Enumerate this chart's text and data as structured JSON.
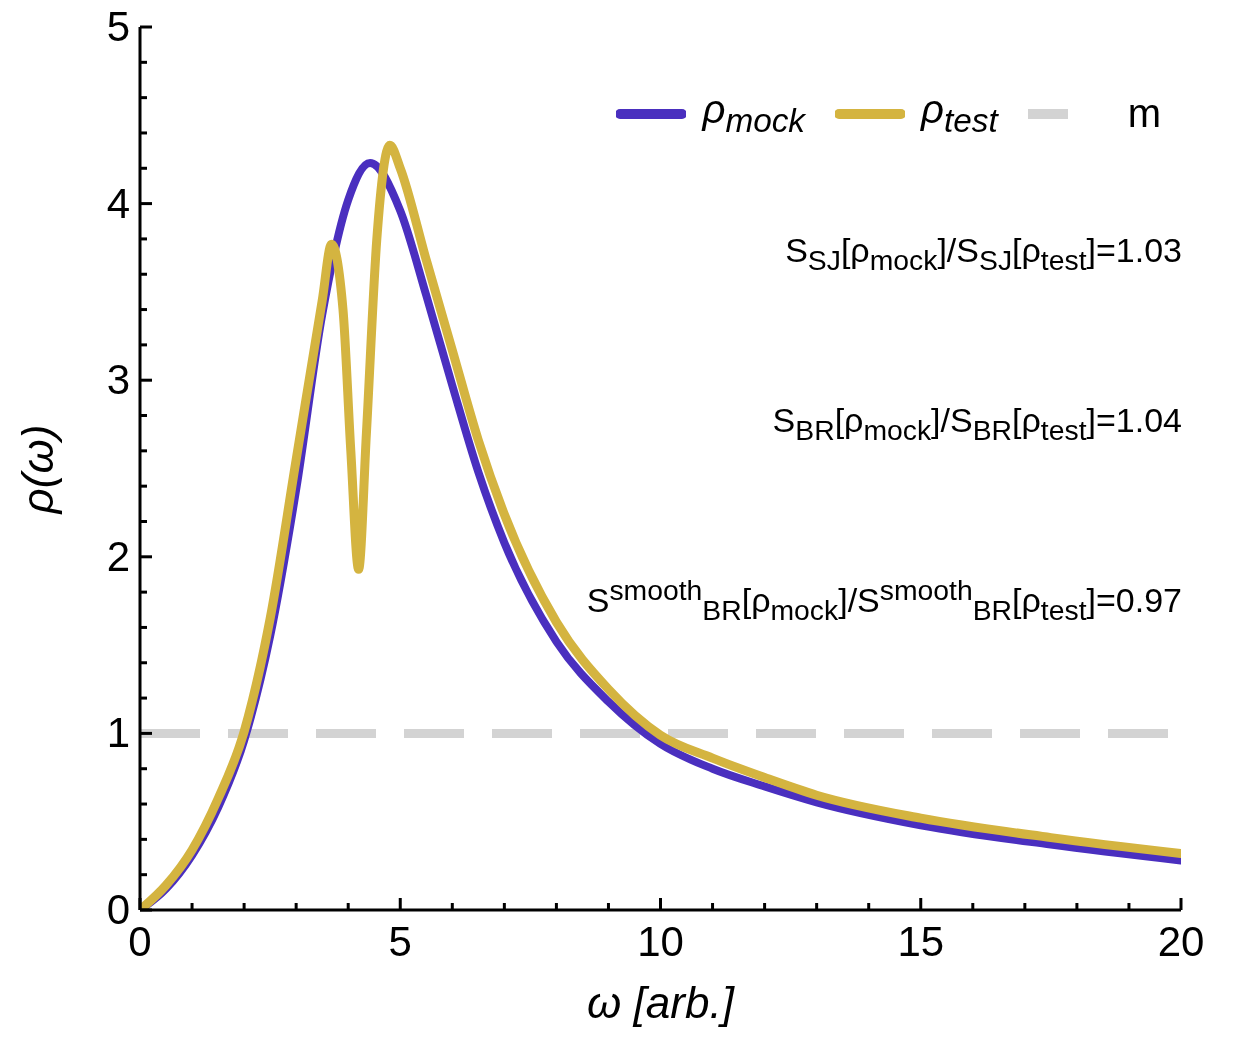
{
  "chart_data": {
    "type": "line",
    "xlabel": "ω [arb.]",
    "ylabel": "ρ(ω)",
    "xlim": [
      0,
      20
    ],
    "ylim": [
      0,
      5
    ],
    "xticks": [
      0,
      {
        "value": 1,
        "label": null
      },
      {
        "value": 2,
        "label": null
      },
      {
        "value": 3,
        "label": null
      },
      {
        "value": 4,
        "label": null
      },
      5,
      {
        "value": 6,
        "label": null
      },
      {
        "value": 7,
        "label": null
      },
      {
        "value": 8,
        "label": null
      },
      {
        "value": 9,
        "label": null
      },
      10,
      {
        "value": 11,
        "label": null
      },
      {
        "value": 12,
        "label": null
      },
      {
        "value": 13,
        "label": null
      },
      {
        "value": 14,
        "label": null
      },
      15,
      {
        "value": 16,
        "label": null
      },
      {
        "value": 17,
        "label": null
      },
      {
        "value": 18,
        "label": null
      },
      {
        "value": 19,
        "label": null
      },
      20
    ],
    "yticks": [
      0,
      {
        "value": 0.2,
        "label": null
      },
      {
        "value": 0.4,
        "label": null
      },
      {
        "value": 0.6,
        "label": null
      },
      {
        "value": 0.8,
        "label": null
      },
      1,
      {
        "value": 1.2,
        "label": null
      },
      {
        "value": 1.4,
        "label": null
      },
      {
        "value": 1.6,
        "label": null
      },
      {
        "value": 1.8,
        "label": null
      },
      2,
      {
        "value": 2.2,
        "label": null
      },
      {
        "value": 2.4,
        "label": null
      },
      {
        "value": 2.6,
        "label": null
      },
      {
        "value": 2.8,
        "label": null
      },
      3,
      {
        "value": 3.2,
        "label": null
      },
      {
        "value": 3.4,
        "label": null
      },
      {
        "value": 3.6,
        "label": null
      },
      {
        "value": 3.8,
        "label": null
      },
      4,
      {
        "value": 4.2,
        "label": null
      },
      {
        "value": 4.4,
        "label": null
      },
      {
        "value": 4.6,
        "label": null
      },
      {
        "value": 4.8,
        "label": null
      },
      5
    ],
    "legend": "top right",
    "marker": "none",
    "line_style": "solid",
    "grid": false,
    "series": [
      {
        "name": "ρ$_{mock}$",
        "color": "#4a2fbf",
        "x": [
          0,
          0.5,
          1,
          1.5,
          2,
          2.5,
          3,
          3.5,
          4,
          4.42,
          5,
          5.5,
          6,
          6.5,
          7,
          8,
          9,
          10,
          11,
          12,
          13,
          15,
          17.5,
          20
        ],
        "values": [
          0,
          0.12,
          0.31,
          0.58,
          0.96,
          1.55,
          2.38,
          3.37,
          4.02,
          4.23,
          3.96,
          3.48,
          2.97,
          2.48,
          2.08,
          1.52,
          1.18,
          0.94,
          0.8,
          0.7,
          0.61,
          0.48,
          0.37,
          0.28
        ]
      },
      {
        "name": "ρ$_{test}$",
        "color": "#d4b440",
        "x": [
          0,
          0.5,
          1,
          1.5,
          2,
          2.5,
          3,
          3.5,
          3.68,
          3.9,
          4.05,
          4.2,
          4.35,
          4.55,
          4.8,
          5,
          5.5,
          6,
          6.5,
          7,
          8,
          9,
          10,
          11,
          12,
          13,
          15,
          17.5,
          20
        ],
        "values": [
          0,
          0.14,
          0.34,
          0.63,
          1.01,
          1.65,
          2.55,
          3.45,
          3.77,
          3.4,
          2.6,
          1.93,
          2.7,
          3.8,
          4.33,
          4.2,
          3.68,
          3.17,
          2.66,
          2.24,
          1.63,
          1.25,
          0.99,
          0.86,
          0.75,
          0.65,
          0.52,
          0.41,
          0.32
        ]
      }
    ],
    "ref_lines": [
      {
        "axis": "y",
        "value": 1,
        "label": "m",
        "color": "#d3d3d3",
        "line_style": "dashed"
      }
    ],
    "annotations": [
      "S$_{SJ}$[ρ$_{mock}$]/S$_{SJ}$[ρ$_{test}$]=1.03",
      "S$_{BR}$[ρ$_{mock}$]/S$_{BR}$[ρ$_{test}$]=1.04",
      "S$^{smooth}$$_{BR}$[ρ$_{mock}$]/S$^{smooth}$$_{BR}$[ρ$_{test}$]=0.97"
    ]
  }
}
